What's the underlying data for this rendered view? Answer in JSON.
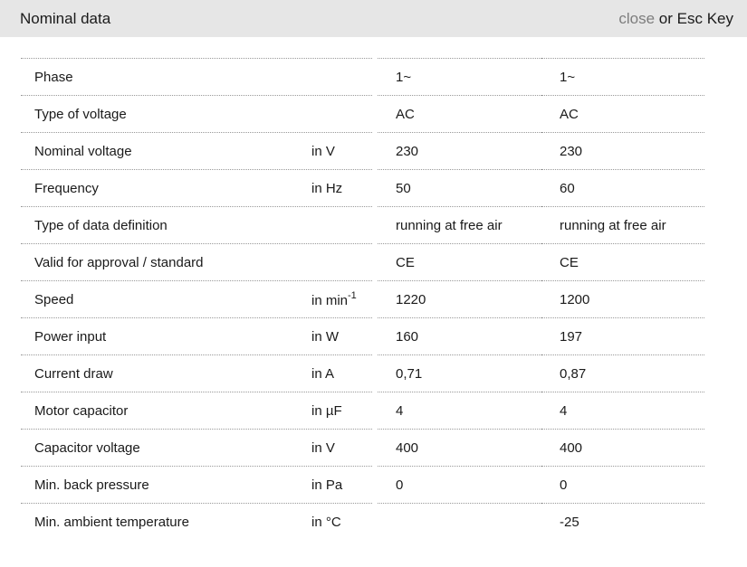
{
  "header": {
    "title": "Nominal data",
    "close_label": "close",
    "esc_hint": " or Esc Key"
  },
  "table": {
    "rows": [
      {
        "label": "Phase",
        "unit": "",
        "v1": "1~",
        "v2": "1~"
      },
      {
        "label": "Type of voltage",
        "unit": "",
        "v1": "AC",
        "v2": "AC"
      },
      {
        "label": "Nominal voltage",
        "unit": "in V",
        "v1": "230",
        "v2": "230"
      },
      {
        "label": "Frequency",
        "unit": "in Hz",
        "v1": "50",
        "v2": "60"
      },
      {
        "label": "Type of data definition",
        "unit": "",
        "v1": "running at free air",
        "v2": "running at free air"
      },
      {
        "label": "Valid for approval / standard",
        "unit": "",
        "v1": "CE",
        "v2": "CE"
      },
      {
        "label": "Speed",
        "unit": "in min",
        "unit_sup": "-1",
        "v1": "1220",
        "v2": "1200"
      },
      {
        "label": "Power input",
        "unit": "in W",
        "v1": "160",
        "v2": "197"
      },
      {
        "label": "Current draw",
        "unit": "in A",
        "v1": "0,71",
        "v2": "0,87"
      },
      {
        "label": "Motor capacitor",
        "unit": "in µF",
        "v1": "4",
        "v2": "4"
      },
      {
        "label": "Capacitor voltage",
        "unit": "in V",
        "v1": "400",
        "v2": "400"
      },
      {
        "label": "Min. back pressure",
        "unit": "in Pa",
        "v1": "0",
        "v2": "0"
      },
      {
        "label": "Min. ambient temperature",
        "unit": "in °C",
        "v1": "",
        "v2": "-25"
      }
    ]
  },
  "colors": {
    "header_bg": "#e6e6e6",
    "text": "#1a1a1a",
    "close_link": "#7d7d7d",
    "divider": "#999999",
    "background": "#ffffff"
  }
}
